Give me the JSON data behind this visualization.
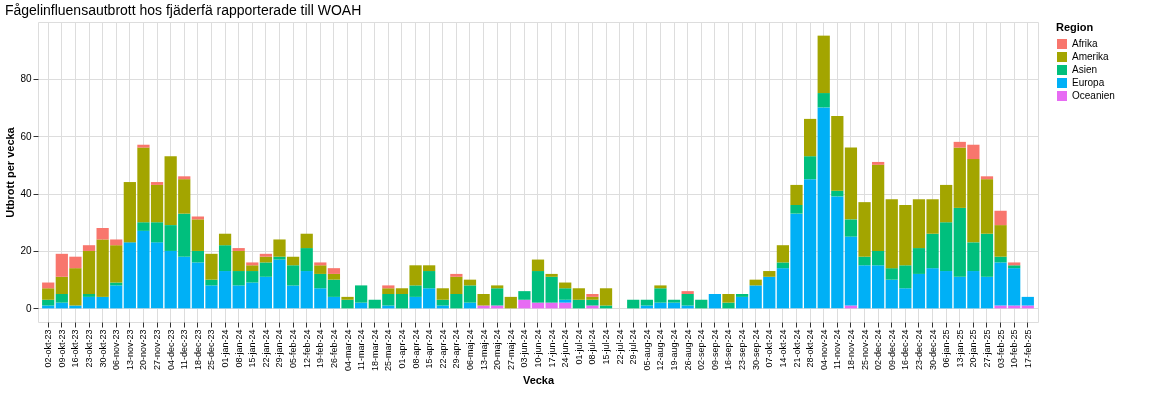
{
  "chart_data": {
    "type": "bar",
    "stacked": true,
    "title": "Fågelinfluensautbrott hos fjäderfä rapporterade till WOAH",
    "xlabel": "Vecka",
    "ylabel": "Utbrott per vecka",
    "legend_title": "Region",
    "legend": "right",
    "grid": true,
    "categories": [
      "02-okt-23",
      "09-okt-23",
      "16-okt-23",
      "23-okt-23",
      "30-okt-23",
      "06-nov-23",
      "13-nov-23",
      "20-nov-23",
      "27-nov-23",
      "04-dec-23",
      "11-dec-23",
      "18-dec-23",
      "25-dec-23",
      "01-jan-24",
      "08-jan-24",
      "15-jan-24",
      "22-jan-24",
      "29-jan-24",
      "05-feb-24",
      "12-feb-24",
      "19-feb-24",
      "26-feb-24",
      "04-mar-24",
      "11-mar-24",
      "18-mar-24",
      "25-mar-24",
      "01-apr-24",
      "08-apr-24",
      "15-apr-24",
      "22-apr-24",
      "29-apr-24",
      "06-maj-24",
      "13-maj-24",
      "20-maj-24",
      "27-maj-24",
      "03-jun-24",
      "10-jun-24",
      "17-jun-24",
      "24-jun-24",
      "01-jul-24",
      "08-jul-24",
      "15-jul-24",
      "22-jul-24",
      "29-jul-24",
      "05-aug-24",
      "12-aug-24",
      "19-aug-24",
      "26-aug-24",
      "02-sep-24",
      "09-sep-24",
      "16-sep-24",
      "23-sep-24",
      "30-sep-24",
      "07-okt-24",
      "14-okt-24",
      "21-okt-24",
      "28-okt-24",
      "04-nov-24",
      "11-nov-24",
      "18-nov-24",
      "25-nov-24",
      "02-dec-24",
      "09-dec-24",
      "16-dec-24",
      "23-dec-24",
      "30-dec-24",
      "06-jan-25",
      "13-jan-25",
      "20-jan-25",
      "27-jan-25",
      "03-feb-25",
      "10-feb-25",
      "17-feb-25"
    ],
    "ylim": [
      -4.75,
      99.75
    ],
    "yticks": [
      0,
      20,
      40,
      60,
      80
    ],
    "series": [
      {
        "name": "Oceanien",
        "color": "#e76bf3",
        "values": [
          0,
          0,
          0,
          0,
          0,
          0,
          0,
          0,
          0,
          0,
          0,
          0,
          0,
          0,
          0,
          0,
          0,
          0,
          0,
          0,
          0,
          0,
          0,
          0,
          0,
          0,
          0,
          0,
          0,
          0,
          0,
          0,
          1,
          1,
          0,
          3,
          2,
          2,
          2,
          0,
          1,
          0,
          0,
          0,
          0,
          0,
          0,
          0,
          0,
          0,
          0,
          0,
          0,
          0,
          0,
          0,
          0,
          0,
          0,
          1,
          0,
          0,
          0,
          0,
          0,
          0,
          0,
          0,
          0,
          0,
          1,
          1,
          1
        ]
      },
      {
        "name": "Europa",
        "color": "#00b0f6",
        "values": [
          1,
          2,
          1,
          4,
          4,
          8,
          23,
          27,
          23,
          20,
          18,
          16,
          8,
          13,
          8,
          9,
          11,
          17,
          8,
          13,
          7,
          4,
          0,
          2,
          0,
          1,
          0,
          4,
          7,
          1,
          0,
          2,
          0,
          0,
          0,
          0,
          0,
          0,
          1,
          0,
          0,
          0,
          0,
          0,
          1,
          2,
          2,
          1,
          0,
          5,
          0,
          4,
          8,
          11,
          14,
          33,
          45,
          70,
          39,
          24,
          15,
          15,
          10,
          7,
          12,
          14,
          13,
          11,
          13,
          11,
          15,
          13,
          3
        ]
      },
      {
        "name": "Asien",
        "color": "#00bf7d",
        "values": [
          2,
          3,
          0,
          1,
          0,
          1,
          0,
          3,
          7,
          9,
          15,
          4,
          2,
          9,
          5,
          4,
          5,
          1,
          7,
          8,
          5,
          6,
          3,
          6,
          3,
          4,
          5,
          4,
          6,
          2,
          5,
          6,
          0,
          6,
          0,
          3,
          11,
          9,
          4,
          3,
          2,
          1,
          0,
          3,
          2,
          5,
          1,
          4,
          3,
          0,
          2,
          1,
          0,
          0,
          2,
          3,
          8,
          5,
          2,
          6,
          3,
          5,
          4,
          8,
          9,
          12,
          17,
          24,
          10,
          15,
          2,
          1,
          0
        ]
      },
      {
        "name": "Amerika",
        "color": "#a3a500",
        "values": [
          4,
          6,
          13,
          15,
          20,
          13,
          21,
          26,
          13,
          24,
          12,
          11,
          9,
          4,
          7,
          2,
          2,
          6,
          3,
          5,
          3,
          2,
          1,
          0,
          0,
          2,
          2,
          7,
          2,
          4,
          6,
          2,
          4,
          1,
          4,
          0,
          4,
          1,
          2,
          4,
          1,
          6,
          0,
          0,
          0,
          1,
          0,
          0,
          0,
          0,
          3,
          0,
          2,
          2,
          6,
          7,
          13,
          20,
          26,
          25,
          19,
          30,
          24,
          21,
          17,
          12,
          13,
          21,
          29,
          19,
          11,
          0,
          0
        ]
      },
      {
        "name": "Afrika",
        "color": "#f8766d",
        "values": [
          2,
          8,
          4,
          2,
          4,
          2,
          0,
          1,
          1,
          0,
          1,
          1,
          0,
          0,
          1,
          1,
          1,
          0,
          0,
          0,
          1,
          2,
          0,
          0,
          0,
          1,
          0,
          0,
          0,
          0,
          1,
          0,
          0,
          0,
          0,
          0,
          0,
          0,
          0,
          0,
          1,
          0,
          0,
          0,
          0,
          0,
          0,
          1,
          0,
          0,
          0,
          0,
          0,
          0,
          0,
          0,
          0,
          0,
          0,
          0,
          0,
          1,
          0,
          0,
          0,
          0,
          0,
          2,
          5,
          1,
          5,
          1,
          0
        ]
      }
    ]
  }
}
